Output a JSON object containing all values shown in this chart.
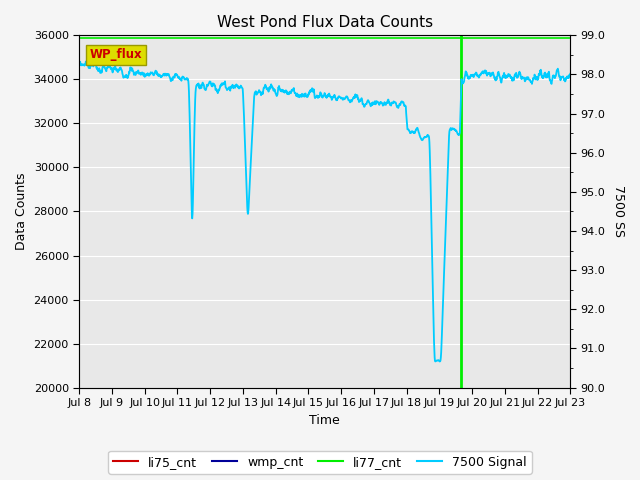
{
  "title": "West Pond Flux Data Counts",
  "xlabel": "Time",
  "ylabel": "Data Counts",
  "ylabel_right": "7500 SS",
  "ylim_left": [
    20000,
    36000
  ],
  "ylim_right": [
    90.0,
    99.0
  ],
  "background_color": "#e8e8e8",
  "figure_color": "#f5f5f5",
  "signal_color": "#00ccff",
  "li77_cnt_color": "#00ee00",
  "li75_cnt_color": "#cc0000",
  "wmp_cnt_color": "#000099",
  "wp_flux_box_facecolor": "#dddd00",
  "wp_flux_box_edgecolor": "#999900",
  "wp_flux_text_color": "#cc0000",
  "xtick_labels": [
    "Jul 8",
    "Jul 9",
    "Jul 10",
    "Jul 11",
    "Jul 12",
    "Jul 13",
    "Jul 14",
    "Jul 15",
    "Jul 16",
    "Jul 17",
    "Jul 18",
    "Jul 19",
    "Jul 20",
    "Jul 21",
    "Jul 22",
    "Jul 23"
  ],
  "xtick_positions": [
    8,
    9,
    10,
    11,
    12,
    13,
    14,
    15,
    16,
    17,
    18,
    19,
    20,
    21,
    22,
    23
  ],
  "yticks_left": [
    20000,
    22000,
    24000,
    26000,
    28000,
    30000,
    32000,
    34000,
    36000
  ],
  "yticks_right": [
    90.0,
    91.0,
    92.0,
    93.0,
    94.0,
    95.0,
    96.0,
    97.0,
    98.0,
    99.0
  ],
  "grid_color": "#ffffff",
  "vertical_line_x": 19.65,
  "li77_y": 35900.0
}
